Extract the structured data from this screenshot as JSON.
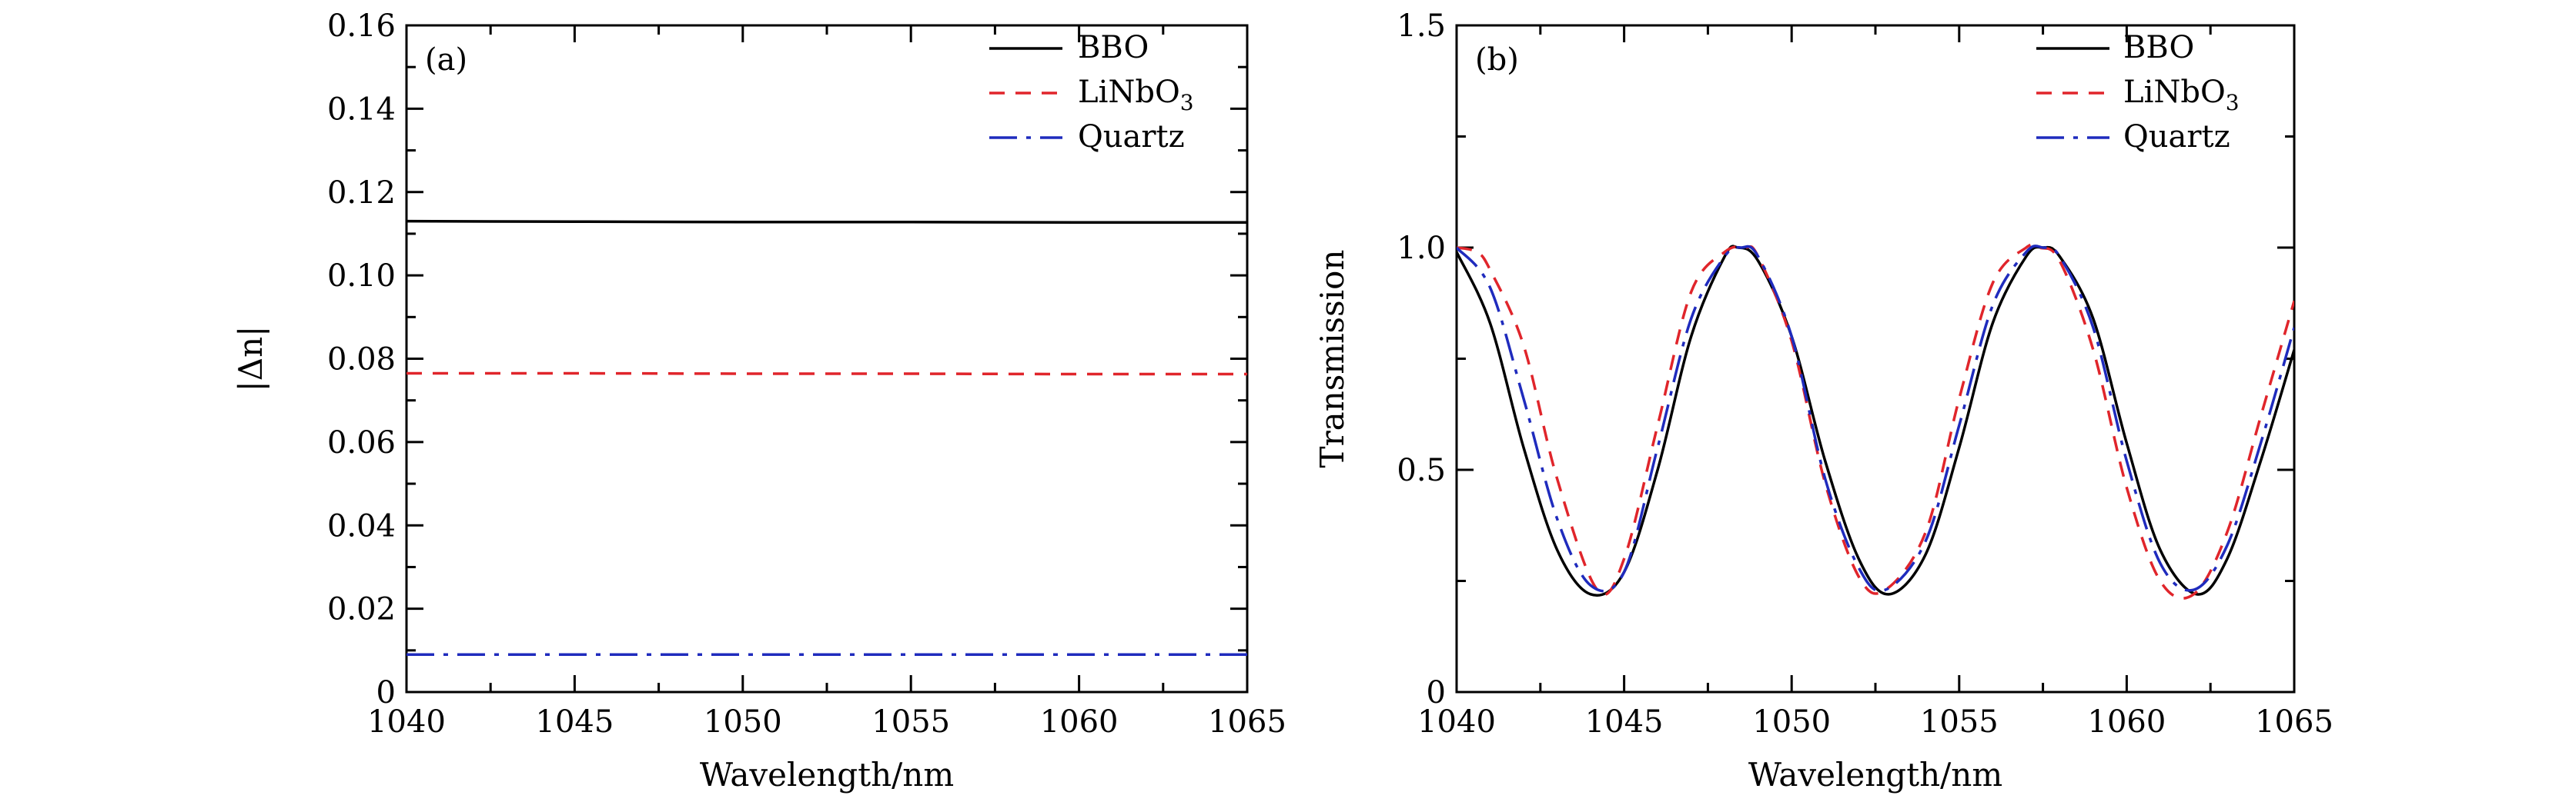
{
  "chart_data": [
    {
      "panel": "(a)",
      "type": "line",
      "xlabel": "Wavelength/nm",
      "ylabel": "|Δn|",
      "xlim": [
        1040,
        1065
      ],
      "ylim": [
        0,
        0.16
      ],
      "xticks": [
        1040,
        1045,
        1050,
        1055,
        1060,
        1065
      ],
      "yticks": [
        0,
        0.02,
        0.04,
        0.06,
        0.08,
        0.1,
        0.12,
        0.14,
        0.16
      ],
      "xtick_labels": [
        "1040",
        "1045",
        "1050",
        "1055",
        "1060",
        "1065"
      ],
      "ytick_labels": [
        "0",
        "0.02",
        "0.04",
        "0.06",
        "0.08",
        "0.10",
        "0.12",
        "0.14",
        "0.16"
      ],
      "grid": false,
      "legend": "top-right",
      "series": [
        {
          "name": "BBO",
          "style": "solid",
          "color": "#000000",
          "x": [
            1040,
            1045,
            1050,
            1055,
            1060,
            1065
          ],
          "y": [
            0.113,
            0.1129,
            0.1128,
            0.1128,
            0.1127,
            0.1127
          ]
        },
        {
          "name": "LiNbO",
          "name_sub": "3",
          "style": "dashed",
          "color": "#e0252b",
          "x": [
            1040,
            1045,
            1050,
            1055,
            1060,
            1065
          ],
          "y": [
            0.0765,
            0.0765,
            0.0764,
            0.0764,
            0.0763,
            0.0763
          ]
        },
        {
          "name": "Quartz",
          "style": "dashdot",
          "color": "#1f2bbd",
          "x": [
            1040,
            1045,
            1050,
            1055,
            1060,
            1065
          ],
          "y": [
            0.009,
            0.009,
            0.009,
            0.009,
            0.009,
            0.009
          ]
        }
      ]
    },
    {
      "panel": "(b)",
      "type": "line",
      "xlabel": "Wavelength/nm",
      "ylabel": "Transmission",
      "xlim": [
        1040,
        1065
      ],
      "ylim": [
        0,
        1.5
      ],
      "xticks": [
        1040,
        1045,
        1050,
        1055,
        1060,
        1065
      ],
      "yticks": [
        0,
        0.5,
        1.0,
        1.5
      ],
      "xtick_labels": [
        "1040",
        "1045",
        "1050",
        "1055",
        "1060",
        "1065"
      ],
      "ytick_labels": [
        "0",
        "0.5",
        "1.0",
        "1.5"
      ],
      "grid": false,
      "legend": "top-right",
      "series": [
        {
          "name": "BBO",
          "style": "solid",
          "color": "#000000",
          "x": [
            1040,
            1041,
            1042,
            1043,
            1044,
            1045,
            1046,
            1047,
            1048,
            1048.4,
            1049,
            1050,
            1051,
            1052,
            1052.9,
            1054,
            1055,
            1056,
            1057,
            1057.5,
            1058,
            1059,
            1060,
            1061,
            1062.1,
            1063,
            1064,
            1065
          ],
          "y": [
            0.99,
            0.83,
            0.55,
            0.32,
            0.22,
            0.27,
            0.5,
            0.8,
            0.98,
            1.0,
            0.97,
            0.8,
            0.52,
            0.3,
            0.22,
            0.31,
            0.55,
            0.83,
            0.98,
            1.0,
            0.98,
            0.84,
            0.56,
            0.32,
            0.22,
            0.3,
            0.52,
            0.77
          ]
        },
        {
          "name": "LiNbO",
          "name_sub": "3",
          "style": "dashed",
          "color": "#e0252b",
          "x": [
            1040,
            1040.6,
            1041,
            1042,
            1043,
            1044.2,
            1045,
            1046,
            1047,
            1048,
            1048.6,
            1049,
            1050,
            1051,
            1052,
            1052.8,
            1054,
            1055,
            1056,
            1057,
            1057.4,
            1058,
            1059,
            1060,
            1061,
            1062,
            1063,
            1064,
            1065
          ],
          "y": [
            1.0,
            0.99,
            0.95,
            0.78,
            0.48,
            0.23,
            0.3,
            0.6,
            0.9,
            0.99,
            1.0,
            0.98,
            0.79,
            0.47,
            0.26,
            0.23,
            0.36,
            0.66,
            0.92,
            1.0,
            1.0,
            0.97,
            0.77,
            0.46,
            0.25,
            0.22,
            0.36,
            0.62,
            0.88
          ]
        },
        {
          "name": "Quartz",
          "style": "dashdot",
          "color": "#1f2bbd",
          "x": [
            1040,
            1041,
            1042,
            1043,
            1044,
            1045,
            1046,
            1047,
            1048,
            1048.5,
            1049,
            1050,
            1051,
            1052,
            1052.8,
            1054,
            1055,
            1056,
            1057,
            1057.5,
            1058,
            1059,
            1060,
            1061,
            1062,
            1063,
            1064,
            1065
          ],
          "y": [
            1.0,
            0.91,
            0.66,
            0.39,
            0.24,
            0.27,
            0.55,
            0.84,
            0.98,
            1.0,
            0.98,
            0.8,
            0.48,
            0.28,
            0.23,
            0.34,
            0.6,
            0.87,
            0.99,
            1.0,
            0.98,
            0.82,
            0.52,
            0.29,
            0.23,
            0.33,
            0.56,
            0.82
          ]
        }
      ]
    }
  ]
}
